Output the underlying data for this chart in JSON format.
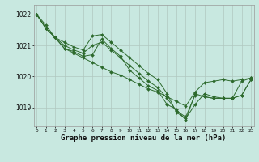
{
  "title": "Graphe pression niveau de la mer (hPa)",
  "bg_color": "#c8e8e0",
  "grid_color": "#b0c8c0",
  "line_color": "#2d6a2d",
  "fig_width": 3.2,
  "fig_height": 2.0,
  "dpi": 100,
  "xlim": [
    -0.3,
    23.3
  ],
  "ylim": [
    1018.4,
    1022.3
  ],
  "yticks": [
    1019,
    1020,
    1021,
    1022
  ],
  "xtick_labels": [
    "0",
    "1",
    "2",
    "3",
    "4",
    "5",
    "6",
    "7",
    "8",
    "9",
    "10",
    "11",
    "12",
    "13",
    "14",
    "15",
    "16",
    "17",
    "18",
    "19",
    "20",
    "21",
    "22",
    "23"
  ],
  "series": [
    {
      "x": [
        0,
        1,
        2,
        3,
        4,
        5,
        6,
        7,
        8,
        9,
        10,
        11,
        12,
        13,
        14,
        15,
        16,
        17,
        18,
        19,
        20,
        21,
        22,
        23
      ],
      "y": [
        1022.0,
        1021.65,
        1021.25,
        1020.9,
        1020.75,
        1020.6,
        1020.45,
        1020.3,
        1020.15,
        1020.05,
        1019.9,
        1019.75,
        1019.6,
        1019.5,
        1019.35,
        1019.2,
        1019.05,
        1019.5,
        1019.8,
        1019.85,
        1019.9,
        1019.85,
        1019.9,
        1019.95
      ]
    },
    {
      "x": [
        0,
        1,
        2,
        3,
        4,
        5,
        6,
        7,
        8,
        9,
        10,
        11,
        12,
        13,
        14,
        15,
        16,
        17,
        18,
        19,
        20,
        21,
        22,
        23
      ],
      "y": [
        1022.0,
        1021.55,
        1021.25,
        1021.1,
        1020.95,
        1020.85,
        1021.3,
        1021.35,
        1021.1,
        1020.85,
        1020.6,
        1020.35,
        1020.1,
        1019.9,
        1019.45,
        1018.85,
        1018.65,
        1019.1,
        1019.45,
        1019.35,
        1019.3,
        1019.3,
        1019.4,
        1019.9
      ]
    },
    {
      "x": [
        0,
        1,
        2,
        3,
        4,
        5,
        6,
        7,
        8,
        9,
        10,
        11,
        12,
        13,
        14,
        15,
        16,
        17,
        18,
        19,
        20,
        21,
        22,
        23
      ],
      "y": [
        1022.0,
        1021.55,
        1021.25,
        1021.0,
        1020.85,
        1020.75,
        1021.0,
        1021.1,
        1020.85,
        1020.6,
        1020.35,
        1020.1,
        1019.85,
        1019.65,
        1019.3,
        1018.9,
        1018.7,
        1019.4,
        1019.35,
        1019.3,
        1019.3,
        1019.3,
        1019.4,
        1019.9
      ]
    },
    {
      "x": [
        0,
        1,
        2,
        3,
        4,
        5,
        6,
        7,
        8,
        9,
        10,
        11,
        12,
        13,
        14,
        15,
        16,
        17,
        18,
        19,
        20,
        21,
        22,
        23
      ],
      "y": [
        1022.0,
        1021.55,
        1021.25,
        1020.9,
        1020.8,
        1020.65,
        1020.7,
        1021.2,
        1020.9,
        1020.65,
        1020.2,
        1019.95,
        1019.7,
        1019.55,
        1019.1,
        1018.95,
        1018.6,
        1019.45,
        1019.35,
        1019.3,
        1019.3,
        1019.3,
        1019.85,
        1019.95
      ]
    }
  ]
}
